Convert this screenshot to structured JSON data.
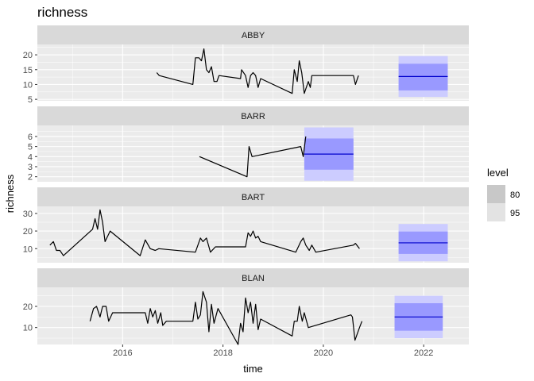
{
  "chart_data": {
    "type": "line",
    "title": "richness",
    "xlabel": "time",
    "ylabel": "richness",
    "xlim": [
      2014.3,
      2022.9
    ],
    "x_ticks": [
      2016,
      2018,
      2020,
      2022
    ],
    "x_tick_labels": [
      "2016",
      "2018",
      "2020",
      "2022"
    ],
    "grid": true,
    "legend": {
      "title": "level",
      "placement": "right",
      "items": [
        {
          "label": "80",
          "color": "#c8c8c8"
        },
        {
          "label": "95",
          "color": "#e3e3e3"
        }
      ]
    },
    "colors": {
      "panel_bg": "#ebebeb",
      "strip_bg": "#d9d9d9",
      "grid": "#ffffff",
      "series_line": "#000000",
      "forecast_80": "#9999ff",
      "forecast_95": "#ccccff",
      "forecast_mean": "#0000cc"
    },
    "panels": [
      {
        "name": "ABBY",
        "ylim": [
          4.5,
          23.5
        ],
        "y_ticks": [
          5,
          10,
          15,
          20
        ],
        "y_tick_labels": [
          "5",
          "10",
          "15",
          "20"
        ],
        "series": [
          [
            2016.68,
            14
          ],
          [
            2016.73,
            13
          ],
          [
            2017.4,
            10
          ],
          [
            2017.45,
            19
          ],
          [
            2017.52,
            19
          ],
          [
            2017.57,
            18
          ],
          [
            2017.62,
            22
          ],
          [
            2017.67,
            15
          ],
          [
            2017.72,
            14
          ],
          [
            2017.77,
            16
          ],
          [
            2017.82,
            11
          ],
          [
            2017.88,
            11
          ],
          [
            2017.92,
            13
          ],
          [
            2018.35,
            12
          ],
          [
            2018.37,
            15
          ],
          [
            2018.45,
            13
          ],
          [
            2018.5,
            9
          ],
          [
            2018.55,
            13
          ],
          [
            2018.6,
            14
          ],
          [
            2018.65,
            13
          ],
          [
            2018.7,
            9
          ],
          [
            2018.75,
            12
          ],
          [
            2019.38,
            7
          ],
          [
            2019.42,
            15
          ],
          [
            2019.48,
            11
          ],
          [
            2019.52,
            18
          ],
          [
            2019.57,
            14
          ],
          [
            2019.62,
            7
          ],
          [
            2019.7,
            11
          ],
          [
            2019.74,
            9
          ],
          [
            2019.77,
            13
          ],
          [
            2020.6,
            13
          ],
          [
            2020.64,
            10
          ],
          [
            2020.7,
            13
          ]
        ],
        "forecast": {
          "x_start": 2021.5,
          "x_end": 2022.48,
          "mean": 12.7,
          "lo80": 8,
          "hi80": 17,
          "lo95": 5.8,
          "hi95": 19.6
        }
      },
      {
        "name": "BARR",
        "ylim": [
          1.5,
          7.1
        ],
        "y_ticks": [
          2,
          3,
          4,
          5,
          6
        ],
        "y_tick_labels": [
          "2",
          "3",
          "4",
          "5",
          "6"
        ],
        "series": [
          [
            2017.53,
            4
          ],
          [
            2017.58,
            3.9
          ],
          [
            2018.48,
            2
          ],
          [
            2018.52,
            5
          ],
          [
            2018.58,
            4
          ],
          [
            2019.55,
            5
          ],
          [
            2019.6,
            4
          ],
          [
            2019.65,
            6
          ]
        ],
        "forecast": {
          "x_start": 2019.62,
          "x_end": 2020.6,
          "mean": 4.25,
          "lo80": 2.7,
          "hi80": 5.8,
          "lo95": 1.6,
          "hi95": 6.9
        }
      },
      {
        "name": "BART",
        "ylim": [
          2,
          34
        ],
        "y_ticks": [
          10,
          20,
          30
        ],
        "y_tick_labels": [
          "10",
          "20",
          "30"
        ],
        "series": [
          [
            2014.55,
            12
          ],
          [
            2014.62,
            14
          ],
          [
            2014.68,
            9
          ],
          [
            2014.75,
            9
          ],
          [
            2014.82,
            6
          ],
          [
            2015.4,
            21
          ],
          [
            2015.45,
            27
          ],
          [
            2015.5,
            21
          ],
          [
            2015.55,
            32
          ],
          [
            2015.6,
            25
          ],
          [
            2015.65,
            14
          ],
          [
            2015.75,
            20
          ],
          [
            2016.35,
            6
          ],
          [
            2016.45,
            15
          ],
          [
            2016.55,
            10
          ],
          [
            2016.65,
            9
          ],
          [
            2016.72,
            10
          ],
          [
            2017.45,
            8
          ],
          [
            2017.55,
            16
          ],
          [
            2017.6,
            14
          ],
          [
            2017.67,
            16
          ],
          [
            2017.75,
            8
          ],
          [
            2017.85,
            11
          ],
          [
            2018.45,
            11
          ],
          [
            2018.5,
            19
          ],
          [
            2018.55,
            17
          ],
          [
            2018.6,
            20
          ],
          [
            2018.65,
            16
          ],
          [
            2018.7,
            17
          ],
          [
            2018.75,
            14
          ],
          [
            2019.45,
            8
          ],
          [
            2019.55,
            14
          ],
          [
            2019.6,
            16
          ],
          [
            2019.65,
            12
          ],
          [
            2019.72,
            9
          ],
          [
            2019.77,
            12
          ],
          [
            2019.85,
            8
          ],
          [
            2020.6,
            12
          ],
          [
            2020.64,
            13
          ],
          [
            2020.72,
            10
          ]
        ],
        "forecast": {
          "x_start": 2021.5,
          "x_end": 2022.48,
          "mean": 13.3,
          "lo80": 7,
          "hi80": 19.7,
          "lo95": 2.8,
          "hi95": 24
        }
      },
      {
        "name": "BLAN",
        "ylim": [
          2,
          29
        ],
        "y_ticks": [
          10,
          20
        ],
        "y_tick_labels": [
          "10",
          "20"
        ],
        "series": [
          [
            2015.35,
            13
          ],
          [
            2015.42,
            19
          ],
          [
            2015.48,
            20
          ],
          [
            2015.55,
            15
          ],
          [
            2015.6,
            20
          ],
          [
            2015.67,
            20
          ],
          [
            2015.72,
            13
          ],
          [
            2015.8,
            17
          ],
          [
            2016.45,
            17
          ],
          [
            2016.5,
            12
          ],
          [
            2016.55,
            19
          ],
          [
            2016.6,
            15
          ],
          [
            2016.65,
            18
          ],
          [
            2016.7,
            12
          ],
          [
            2016.76,
            17
          ],
          [
            2016.8,
            11
          ],
          [
            2016.87,
            13
          ],
          [
            2017.4,
            13
          ],
          [
            2017.45,
            22
          ],
          [
            2017.5,
            14
          ],
          [
            2017.55,
            16
          ],
          [
            2017.6,
            27
          ],
          [
            2017.67,
            22
          ],
          [
            2017.72,
            8
          ],
          [
            2017.77,
            21
          ],
          [
            2017.82,
            12
          ],
          [
            2017.9,
            19
          ],
          [
            2018.3,
            2
          ],
          [
            2018.35,
            12
          ],
          [
            2018.4,
            8
          ],
          [
            2018.45,
            24
          ],
          [
            2018.5,
            17
          ],
          [
            2018.55,
            22
          ],
          [
            2018.6,
            12
          ],
          [
            2018.65,
            21
          ],
          [
            2018.7,
            9
          ],
          [
            2018.75,
            14
          ],
          [
            2019.38,
            6
          ],
          [
            2019.42,
            13
          ],
          [
            2019.48,
            13
          ],
          [
            2019.52,
            20
          ],
          [
            2019.58,
            13
          ],
          [
            2019.62,
            17
          ],
          [
            2019.7,
            10
          ],
          [
            2020.55,
            16
          ],
          [
            2020.58,
            15
          ],
          [
            2020.63,
            4
          ],
          [
            2020.72,
            10
          ],
          [
            2020.77,
            13
          ]
        ],
        "forecast": {
          "x_start": 2021.42,
          "x_end": 2022.38,
          "mean": 15,
          "lo80": 8.5,
          "hi80": 21.5,
          "lo95": 5,
          "hi95": 25
        }
      }
    ]
  }
}
